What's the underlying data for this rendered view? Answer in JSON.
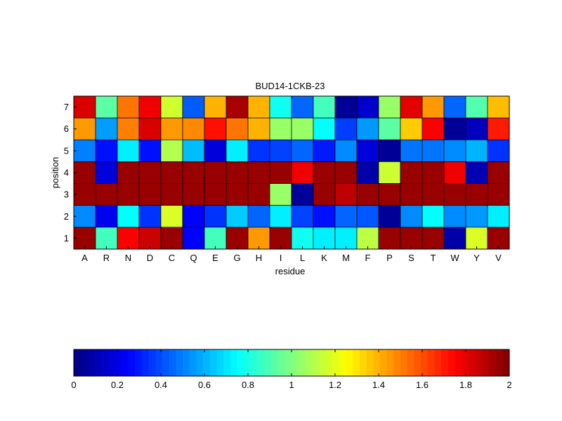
{
  "chart_data": {
    "type": "heatmap",
    "title": "BUD14-1CKB-23",
    "xlabel": "residue",
    "ylabel": "position",
    "x_categories": [
      "A",
      "R",
      "N",
      "D",
      "C",
      "Q",
      "E",
      "G",
      "H",
      "I",
      "L",
      "K",
      "M",
      "F",
      "P",
      "S",
      "T",
      "W",
      "Y",
      "V"
    ],
    "y_categories": [
      "7",
      "6",
      "5",
      "4",
      "3",
      "2",
      "1"
    ],
    "values": [
      [
        1.82,
        0.93,
        1.52,
        1.78,
        1.16,
        0.43,
        1.4,
        1.92,
        1.4,
        0.78,
        0.45,
        0.88,
        0.05,
        0.15,
        1.05,
        1.8,
        1.45,
        0.45,
        0.91,
        1.38
      ],
      [
        1.45,
        0.56,
        1.5,
        1.82,
        1.45,
        1.48,
        1.72,
        1.52,
        1.4,
        1.05,
        1.05,
        0.75,
        0.37,
        0.55,
        0.93,
        1.35,
        1.75,
        0.05,
        0.12,
        1.7
      ],
      [
        0.5,
        0.28,
        0.72,
        0.28,
        1.1,
        0.62,
        0.18,
        0.72,
        0.35,
        0.38,
        0.45,
        0.3,
        0.52,
        0.18,
        0.05,
        0.48,
        0.48,
        0.52,
        0.6,
        0.35
      ],
      [
        1.95,
        0.18,
        1.95,
        1.95,
        1.95,
        1.95,
        1.95,
        1.95,
        1.95,
        1.95,
        1.78,
        1.95,
        1.95,
        0.08,
        1.15,
        1.95,
        1.95,
        1.78,
        0.1,
        1.95
      ],
      [
        1.95,
        1.95,
        1.95,
        1.95,
        1.95,
        1.95,
        1.95,
        1.95,
        1.95,
        1.05,
        0.05,
        1.95,
        1.88,
        1.95,
        1.95,
        1.95,
        1.95,
        1.95,
        1.95,
        1.95
      ],
      [
        0.52,
        0.22,
        0.75,
        0.35,
        1.18,
        0.25,
        0.35,
        0.65,
        0.45,
        0.72,
        0.38,
        0.28,
        0.45,
        0.42,
        0.05,
        0.52,
        0.75,
        0.52,
        0.55,
        0.72
      ],
      [
        1.95,
        0.88,
        1.75,
        1.85,
        1.95,
        0.25,
        0.88,
        1.95,
        1.45,
        1.95,
        0.78,
        0.72,
        0.72,
        1.12,
        1.95,
        1.95,
        1.95,
        0.08,
        1.18,
        1.95
      ]
    ],
    "colormap": "jet",
    "clim": [
      0,
      2
    ],
    "colorbar": {
      "ticks": [
        "0",
        "0.2",
        "0.4",
        "0.6",
        "0.8",
        "1",
        "1.2",
        "1.4",
        "1.6",
        "1.8",
        "2"
      ],
      "placement": "bottom"
    },
    "grid": false
  }
}
